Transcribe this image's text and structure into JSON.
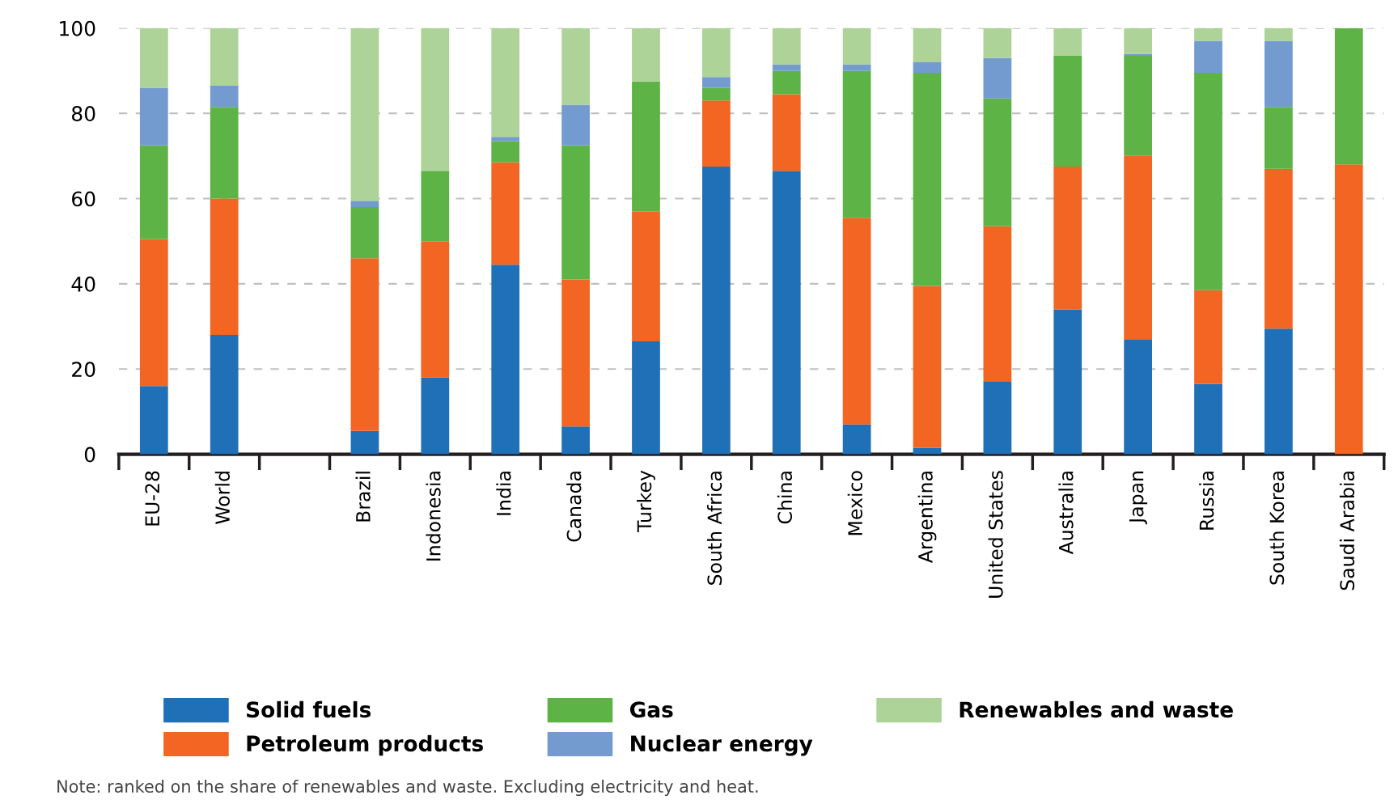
{
  "chart_data": {
    "type": "bar",
    "stacked": true,
    "categories": [
      "EU-28",
      "World",
      null,
      "Brazil",
      "Indonesia",
      "India",
      "Canada",
      "Turkey",
      "South Africa",
      "China",
      "Mexico",
      "Argentina",
      "United States",
      "Australia",
      "Japan",
      "Russia",
      "South Korea",
      "Saudi Arabia"
    ],
    "series": [
      {
        "name": "Solid fuels",
        "color": "#2070b8",
        "values": [
          16,
          28,
          null,
          5.5,
          18,
          44.5,
          6.5,
          26.5,
          67.5,
          66.5,
          7,
          1.5,
          17,
          34,
          27,
          16.5,
          29.5,
          0
        ]
      },
      {
        "name": "Petroleum products",
        "color": "#f26522",
        "values": [
          34.5,
          32,
          null,
          40.5,
          32,
          24,
          34.5,
          30.5,
          15.5,
          18,
          48.5,
          38,
          36.5,
          33.5,
          43,
          22,
          37.5,
          68
        ]
      },
      {
        "name": "Gas",
        "color": "#5db345",
        "values": [
          22,
          21.5,
          null,
          12,
          16.5,
          5,
          31.5,
          30.5,
          3,
          5.5,
          34.5,
          50,
          30,
          26,
          23.5,
          51,
          14.5,
          32
        ]
      },
      {
        "name": "Nuclear energy",
        "color": "#739bd0",
        "values": [
          13.5,
          5,
          null,
          1.5,
          0,
          1,
          9.5,
          0,
          2.5,
          1.5,
          1.5,
          2.5,
          9.5,
          0,
          0.5,
          7.5,
          15.5,
          0
        ]
      },
      {
        "name": "Renewables and waste",
        "color": "#add398",
        "values": [
          14,
          13.5,
          null,
          40.5,
          33.5,
          25.5,
          18,
          12.5,
          11.5,
          8.5,
          8.5,
          8,
          7,
          6.5,
          6,
          3,
          3,
          0
        ]
      }
    ],
    "ylim": [
      0,
      100
    ],
    "yticks": [
      0,
      20,
      40,
      60,
      80,
      100
    ],
    "grid": "y",
    "legend": "bottom",
    "annotations": [
      "Note: ranked on the share of renewables and waste. Excluding electricity and heat."
    ]
  }
}
